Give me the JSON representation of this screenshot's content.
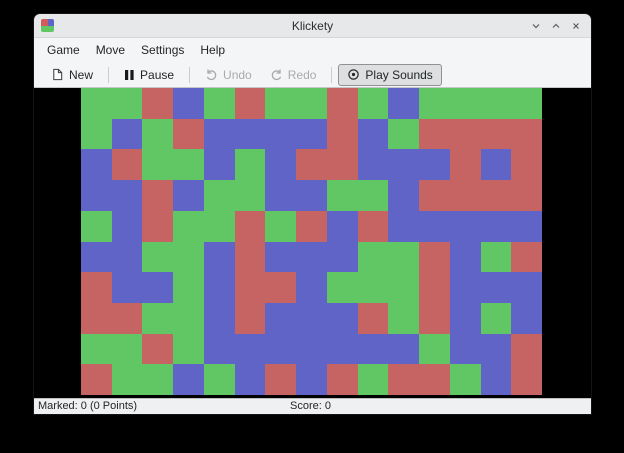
{
  "window": {
    "title": "Klickety"
  },
  "menubar": {
    "items": [
      {
        "label": "Game"
      },
      {
        "label": "Move"
      },
      {
        "label": "Settings"
      },
      {
        "label": "Help"
      }
    ]
  },
  "toolbar": {
    "new_label": "New",
    "pause_label": "Pause",
    "undo_label": "Undo",
    "redo_label": "Redo",
    "play_sounds_label": "Play Sounds"
  },
  "statusbar": {
    "marked": "Marked: 0 (0 Points)",
    "score": "Score: 0"
  },
  "board": {
    "rows": 10,
    "cols": 15,
    "colors": {
      "G": "#61c764",
      "B": "#5f64c6",
      "R": "#c66464"
    },
    "grid": [
      "GGRBGRGGRGBGGGG",
      "GBGRBBBBRBGRRRR",
      "BRGGBGBRRBBBRBR",
      "BBRBGGBBGGBRRRR",
      "GBRGGRGRBRBBBBB",
      "BBGGBRBBBGGRBGR",
      "RBBGBRRBGGGRBBB",
      "RRGGBRBBBRGRBGB",
      "GGRGBBBBBBBGBBR",
      "RGGBGBRBRGRRGBR"
    ]
  },
  "app_icon_colors": {
    "tl": "#d05c5c",
    "tr": "#5f64c6",
    "bl": "#61c764",
    "br": "#61c764"
  }
}
